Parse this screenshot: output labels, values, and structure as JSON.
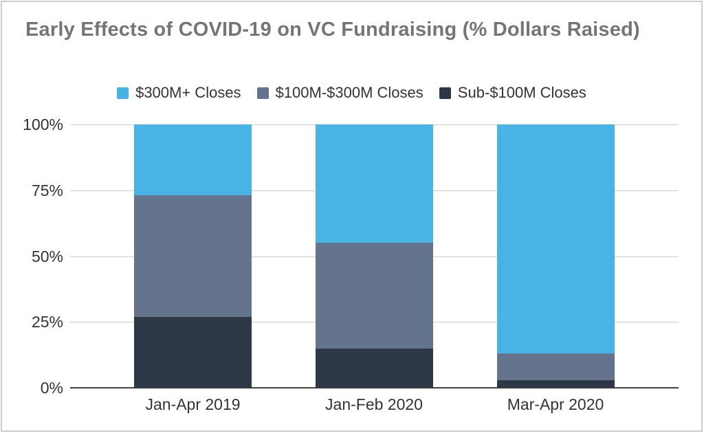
{
  "colors": {
    "background": "#ffffff",
    "card_border": "#cccccc",
    "title_text": "#757575",
    "axis_text": "#333333",
    "gridline": "#cccccc",
    "axis_line": "#424242"
  },
  "chart_data": {
    "type": "bar",
    "stacked": true,
    "orientation": "vertical",
    "title": "Early Effects of COVID-19 on VC Fundraising (% Dollars Raised)",
    "categories": [
      "Jan-Apr 2019",
      "Jan-Feb 2020",
      "Mar-Apr 2020"
    ],
    "series": [
      {
        "name": "$300M+ Closes",
        "color": "#47B4E5",
        "values": [
          27,
          45,
          87
        ]
      },
      {
        "name": "$100M-$300M Closes",
        "color": "#64748C",
        "values": [
          46,
          40,
          10
        ]
      },
      {
        "name": "Sub-$100M Closes",
        "color": "#2E3744",
        "values": [
          27,
          15,
          3
        ]
      }
    ],
    "stack_order_bottom_to_top": [
      "Sub-$100M Closes",
      "$100M-$300M Closes",
      "$300M+ Closes"
    ],
    "xlabel": "",
    "ylabel": "",
    "ylim": [
      0,
      100
    ],
    "yticks": [
      "0%",
      "25%",
      "50%",
      "75%",
      "100%"
    ],
    "grid": true,
    "legend_position": "top"
  }
}
